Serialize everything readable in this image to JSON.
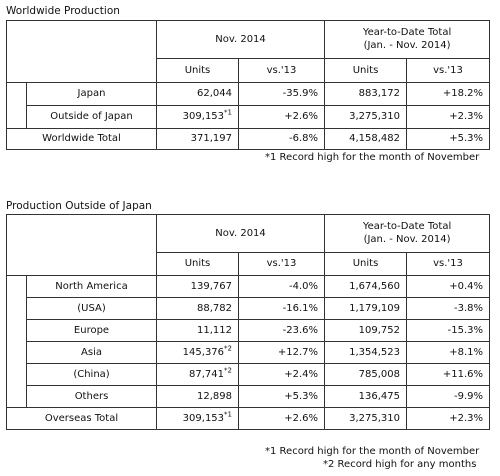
{
  "section1": {
    "title": "Worldwide Production",
    "header": {
      "period1": "Nov. 2014",
      "period2_line1": "Year-to-Date Total",
      "period2_line2": "(Jan. - Nov. 2014)",
      "units": "Units",
      "vs": "vs.'13",
      "units2": "Units",
      "vs2": "vs.'13"
    },
    "rows": [
      {
        "label": "Japan",
        "units": "62,044",
        "sup": "",
        "vs": "-35.9%",
        "ytd": "883,172",
        "ytd_vs": "+18.2%"
      },
      {
        "label": "Outside of Japan",
        "units": "309,153",
        "sup": "*1",
        "vs": "+2.6%",
        "ytd": "3,275,310",
        "ytd_vs": "+2.3%"
      },
      {
        "label": "Worldwide Total",
        "units": "371,197",
        "sup": "",
        "vs": "-6.8%",
        "ytd": "4,158,482",
        "ytd_vs": "+5.3%"
      }
    ],
    "footnote": "*1 Record high for the month of November"
  },
  "section2": {
    "title": "Production Outside of Japan",
    "header": {
      "period1": "Nov. 2014",
      "period2_line1": "Year-to-Date Total",
      "period2_line2": "(Jan. - Nov. 2014)",
      "units": "Units",
      "vs": "vs.'13",
      "units2": "Units",
      "vs2": "vs.'13"
    },
    "rows": [
      {
        "label": "North America",
        "units": "139,767",
        "sup": "",
        "vs": "-4.0%",
        "ytd": "1,674,560",
        "ytd_vs": "+0.4%"
      },
      {
        "label": "(USA)",
        "units": "88,782",
        "sup": "",
        "vs": "-16.1%",
        "ytd": "1,179,109",
        "ytd_vs": "-3.8%"
      },
      {
        "label": "Europe",
        "units": "11,112",
        "sup": "",
        "vs": "-23.6%",
        "ytd": "109,752",
        "ytd_vs": "-15.3%"
      },
      {
        "label": "Asia",
        "units": "145,376",
        "sup": "*2",
        "vs": "+12.7%",
        "ytd": "1,354,523",
        "ytd_vs": "+8.1%"
      },
      {
        "label": "(China)",
        "units": "87,741",
        "sup": "*2",
        "vs": "+2.4%",
        "ytd": "785,008",
        "ytd_vs": "+11.6%"
      },
      {
        "label": "Others",
        "units": "12,898",
        "sup": "",
        "vs": "+5.3%",
        "ytd": "136,475",
        "ytd_vs": "-9.9%"
      },
      {
        "label": "Overseas Total",
        "units": "309,153",
        "sup": "*1",
        "vs": "+2.6%",
        "ytd": "3,275,310",
        "ytd_vs": "+2.3%"
      }
    ],
    "footnote1": "*1 Record high for the month of November",
    "footnote2": "*2 Record high for any months"
  }
}
